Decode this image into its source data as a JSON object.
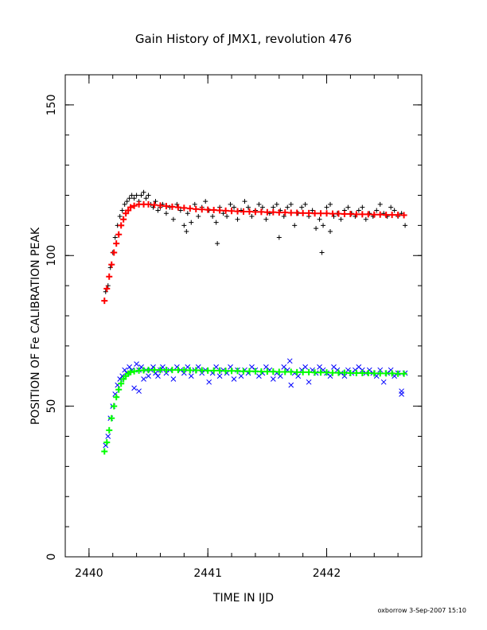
{
  "chart_data": {
    "type": "scatter",
    "title": "Gain History of JMX1, revolution 476",
    "xlabel": "TIME IN IJD",
    "ylabel": "POSITION OF Fe CALIBRATION PEAK",
    "footer": "oxborrow   3-Sep-2007 15:10",
    "xlim": [
      2439.8,
      2442.8
    ],
    "ylim": [
      0,
      160
    ],
    "xticks": [
      {
        "value": 2440,
        "label": "2440"
      },
      {
        "value": 2441,
        "label": "2441"
      },
      {
        "value": 2442,
        "label": "2442"
      }
    ],
    "yticks": [
      {
        "value": 0,
        "label": "0"
      },
      {
        "value": 50,
        "label": "50"
      },
      {
        "value": 100,
        "label": "100"
      },
      {
        "value": 150,
        "label": "150"
      }
    ],
    "x_minor_step": 0.2,
    "y_minor_step": 10,
    "grid": false,
    "series": [
      {
        "marker": "plus",
        "color": "#000000",
        "x": [
          2440.14,
          2440.16,
          2440.18,
          2440.2,
          2440.22,
          2440.24,
          2440.26,
          2440.28,
          2440.3,
          2440.32,
          2440.34,
          2440.36,
          2440.38,
          2440.4,
          2440.42,
          2440.44,
          2440.46,
          2440.48,
          2440.5,
          2440.52,
          2440.54,
          2440.56,
          2440.58,
          2440.6,
          2440.62,
          2440.65,
          2440.68,
          2440.71,
          2440.74,
          2440.77,
          2440.8,
          2440.83,
          2440.86,
          2440.89,
          2440.92,
          2440.95,
          2440.98,
          2441.01,
          2441.04,
          2441.07,
          2441.1,
          2441.13,
          2441.16,
          2441.19,
          2441.22,
          2441.25,
          2441.28,
          2441.31,
          2441.34,
          2441.37,
          2441.4,
          2441.43,
          2441.46,
          2441.49,
          2441.52,
          2441.55,
          2441.58,
          2441.61,
          2441.64,
          2441.67,
          2441.7,
          2441.73,
          2441.76,
          2441.79,
          2441.82,
          2441.85,
          2441.88,
          2441.91,
          2441.94,
          2441.97,
          2442.0,
          2442.03,
          2442.06,
          2442.09,
          2442.12,
          2442.15,
          2442.18,
          2442.21,
          2442.24,
          2442.27,
          2442.3,
          2442.33,
          2442.36,
          2442.39,
          2442.42,
          2442.45,
          2442.48,
          2442.51,
          2442.54,
          2442.57,
          2442.6,
          2442.63,
          2442.66,
          2441.08,
          2441.6,
          2441.96,
          2442.03,
          2440.82
        ],
        "y": [
          88,
          90,
          96,
          101,
          106,
          110,
          113,
          115,
          117,
          118,
          119,
          120,
          119,
          120,
          118,
          120,
          121,
          119,
          120,
          117,
          116,
          118,
          115,
          116,
          117,
          114,
          116,
          112,
          117,
          115,
          110,
          114,
          111,
          117,
          113,
          116,
          118,
          115,
          113,
          111,
          116,
          114,
          113,
          117,
          116,
          112,
          115,
          118,
          116,
          113,
          115,
          117,
          116,
          112,
          114,
          116,
          117,
          115,
          113,
          116,
          117,
          110,
          114,
          116,
          117,
          113,
          115,
          109,
          112,
          110,
          116,
          117,
          113,
          114,
          112,
          115,
          116,
          114,
          113,
          115,
          116,
          112,
          114,
          113,
          115,
          117,
          114,
          113,
          116,
          115,
          113,
          114,
          110,
          104,
          106,
          101,
          108,
          108
        ]
      },
      {
        "marker": "plus",
        "color": "#ff0000",
        "x": [
          2440.13,
          2440.15,
          2440.17,
          2440.19,
          2440.21,
          2440.23,
          2440.25,
          2440.27,
          2440.29,
          2440.31,
          2440.33,
          2440.35,
          2440.38,
          2440.42,
          2440.46,
          2440.5,
          2440.55,
          2440.6,
          2440.65,
          2440.7,
          2440.75,
          2440.8,
          2440.85,
          2440.9,
          2440.95,
          2441.0,
          2441.05,
          2441.1,
          2441.15,
          2441.2,
          2441.25,
          2441.3,
          2441.35,
          2441.4,
          2441.45,
          2441.5,
          2441.55,
          2441.6,
          2441.65,
          2441.7,
          2441.75,
          2441.8,
          2441.85,
          2441.9,
          2441.95,
          2442.0,
          2442.05,
          2442.1,
          2442.15,
          2442.2,
          2442.25,
          2442.3,
          2442.35,
          2442.4,
          2442.45,
          2442.5,
          2442.55,
          2442.6,
          2442.65
        ],
        "y": [
          85,
          89,
          93,
          97,
          101,
          104,
          107,
          110,
          112,
          114,
          115,
          116,
          116.5,
          117,
          117,
          117,
          116.8,
          116.6,
          116.4,
          116.2,
          116,
          115.8,
          115.6,
          115.4,
          115.3,
          115.2,
          115.1,
          115,
          114.9,
          114.8,
          114.7,
          114.6,
          114.6,
          114.5,
          114.5,
          114.4,
          114.4,
          114.3,
          114.3,
          114.2,
          114.2,
          114.1,
          114.1,
          114,
          114,
          114,
          113.9,
          113.9,
          113.8,
          113.8,
          113.7,
          113.7,
          113.7,
          113.6,
          113.6,
          113.5,
          113.5,
          113.5,
          113.4
        ]
      },
      {
        "marker": "x",
        "color": "#0000ff",
        "x": [
          2440.14,
          2440.16,
          2440.18,
          2440.2,
          2440.22,
          2440.24,
          2440.26,
          2440.28,
          2440.3,
          2440.32,
          2440.34,
          2440.36,
          2440.38,
          2440.4,
          2440.42,
          2440.44,
          2440.46,
          2440.48,
          2440.5,
          2440.52,
          2440.54,
          2440.56,
          2440.58,
          2440.6,
          2440.62,
          2440.65,
          2440.68,
          2440.71,
          2440.74,
          2440.77,
          2440.8,
          2440.83,
          2440.86,
          2440.89,
          2440.92,
          2440.95,
          2440.98,
          2441.01,
          2441.04,
          2441.07,
          2441.1,
          2441.13,
          2441.16,
          2441.19,
          2441.22,
          2441.25,
          2441.28,
          2441.31,
          2441.34,
          2441.37,
          2441.4,
          2441.43,
          2441.46,
          2441.49,
          2441.52,
          2441.55,
          2441.58,
          2441.61,
          2441.64,
          2441.67,
          2441.7,
          2441.73,
          2441.76,
          2441.79,
          2441.82,
          2441.85,
          2441.88,
          2441.91,
          2441.94,
          2441.97,
          2442.0,
          2442.03,
          2442.06,
          2442.09,
          2442.12,
          2442.15,
          2442.18,
          2442.21,
          2442.24,
          2442.27,
          2442.3,
          2442.33,
          2442.36,
          2442.39,
          2442.42,
          2442.45,
          2442.48,
          2442.51,
          2442.54,
          2442.57,
          2442.6,
          2442.63,
          2442.66,
          2440.42,
          2441.69,
          2442.63
        ],
        "y": [
          37,
          40,
          46,
          50,
          54,
          57,
          59,
          60,
          62,
          61,
          63,
          62,
          56,
          64,
          62,
          63,
          59,
          62,
          60,
          62,
          63,
          61,
          60,
          62,
          63,
          61,
          62,
          59,
          63,
          62,
          61,
          63,
          60,
          62,
          63,
          61,
          62,
          58,
          61,
          63,
          60,
          62,
          61,
          63,
          59,
          62,
          60,
          62,
          61,
          63,
          62,
          60,
          61,
          63,
          62,
          59,
          61,
          60,
          63,
          62,
          57,
          61,
          60,
          62,
          63,
          58,
          62,
          61,
          63,
          62,
          61,
          60,
          63,
          62,
          61,
          60,
          62,
          61,
          62,
          63,
          62,
          61,
          62,
          61,
          60,
          62,
          58,
          61,
          62,
          60,
          61,
          55,
          61,
          55,
          65,
          54
        ]
      },
      {
        "marker": "plus",
        "color": "#00ff00",
        "x": [
          2440.13,
          2440.15,
          2440.17,
          2440.19,
          2440.21,
          2440.23,
          2440.25,
          2440.27,
          2440.29,
          2440.31,
          2440.33,
          2440.35,
          2440.38,
          2440.42,
          2440.46,
          2440.5,
          2440.55,
          2440.6,
          2440.65,
          2440.7,
          2440.75,
          2440.8,
          2440.85,
          2440.9,
          2440.95,
          2441.0,
          2441.05,
          2441.1,
          2441.15,
          2441.2,
          2441.25,
          2441.3,
          2441.35,
          2441.4,
          2441.45,
          2441.5,
          2441.55,
          2441.6,
          2441.65,
          2441.7,
          2441.75,
          2441.8,
          2441.85,
          2441.9,
          2441.95,
          2442.0,
          2442.05,
          2442.1,
          2442.15,
          2442.2,
          2442.25,
          2442.3,
          2442.35,
          2442.4,
          2442.45,
          2442.5,
          2442.55,
          2442.6,
          2442.65
        ],
        "y": [
          35,
          38,
          42,
          46,
          50,
          53,
          55.5,
          57.5,
          59,
          60,
          60.8,
          61.3,
          61.6,
          61.8,
          61.9,
          62,
          62,
          62,
          62,
          62,
          62,
          62,
          61.9,
          61.9,
          61.9,
          61.8,
          61.8,
          61.8,
          61.7,
          61.7,
          61.7,
          61.6,
          61.6,
          61.6,
          61.5,
          61.5,
          61.5,
          61.4,
          61.4,
          61.4,
          61.3,
          61.3,
          61.3,
          61.2,
          61.2,
          61.2,
          61.1,
          61.1,
          61.1,
          61,
          61,
          61,
          61,
          60.9,
          60.9,
          60.9,
          60.9,
          60.8,
          60.8
        ]
      }
    ]
  }
}
